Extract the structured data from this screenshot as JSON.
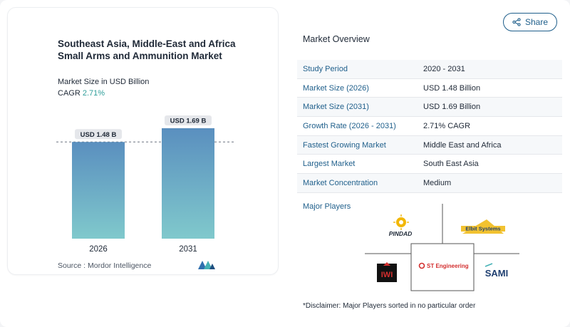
{
  "share": {
    "label": "Share",
    "icon": "share-icon"
  },
  "chart": {
    "title": "Southeast Asia, Middle-East and Africa Small Arms and Ammunition Market",
    "subtitle": "Market Size in USD Billion",
    "cagr_label": "CAGR",
    "cagr_value": "2.71%",
    "source": "Source : Mordor Intelligence"
  },
  "chart_data": {
    "type": "bar",
    "categories": [
      "2026",
      "2031"
    ],
    "values": [
      1.48,
      1.69
    ],
    "data_labels": [
      "USD 1.48 B",
      "USD 1.69 B"
    ],
    "title": "Southeast Asia, Middle-East and Africa Small Arms and Ammunition Market",
    "subtitle": "Market Size in USD Billion",
    "ylabel": "",
    "xlabel": "",
    "ylim": [
      0,
      1.69
    ],
    "grid": false,
    "reference_line": 1.48,
    "colors": {
      "bar_top": "#5a8fbf",
      "bar_bottom": "#7fc8cc"
    }
  },
  "overview": {
    "title": "Market Overview",
    "rows": [
      {
        "key": "Study Period",
        "value": "2020 - 2031"
      },
      {
        "key": "Market Size (2026)",
        "value": "USD 1.48 Billion"
      },
      {
        "key": "Market Size (2031)",
        "value": "USD 1.69 Billion"
      },
      {
        "key": "Growth Rate (2026 - 2031)",
        "value": "2.71% CAGR"
      },
      {
        "key": "Fastest Growing Market",
        "value": "Middle East and Africa"
      },
      {
        "key": "Largest Market",
        "value": "South East Asia"
      },
      {
        "key": "Market Concentration",
        "value": "Medium"
      }
    ],
    "players_label": "Major Players",
    "players": [
      {
        "name": "PINDAD",
        "logo": "pindad-logo"
      },
      {
        "name": "Elbit Systems",
        "logo": "elbit-systems-logo"
      },
      {
        "name": "IWI",
        "logo": "iwi-logo"
      },
      {
        "name": "ST Engineering",
        "logo": "st-engineering-logo"
      },
      {
        "name": "SAMI",
        "logo": "sami-logo"
      }
    ],
    "disclaimer": "*Disclaimer: Major Players sorted in no particular order"
  }
}
